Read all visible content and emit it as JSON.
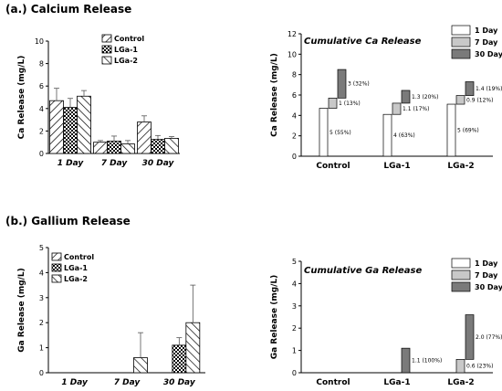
{
  "sections": [
    {
      "title": "(a.) Calcium Release"
    },
    {
      "title": "(b.) Gallium Release"
    }
  ],
  "colors": {
    "cum_1day": "#ffffff",
    "cum_7day": "#c8c8c8",
    "cum_30day": "#7a7a7a",
    "axis": "#000000"
  },
  "chart_data": [
    {
      "type": "bar",
      "title": "",
      "ylabel": "Ca Release (mg/L)",
      "ylim": [
        0,
        10
      ],
      "yticks": [
        "0",
        "2",
        "4",
        "6",
        "8",
        "10"
      ],
      "categories": [
        "1 Day",
        "7 Day",
        "30 Day"
      ],
      "legend_position": "top-right",
      "series": [
        {
          "name": "Control",
          "pattern": "diagonal-hatch",
          "values": [
            4.7,
            1.0,
            2.8
          ],
          "errors": [
            1.1,
            0.15,
            0.55
          ]
        },
        {
          "name": "LGa-1",
          "pattern": "crosshatch",
          "values": [
            4.1,
            1.1,
            1.25
          ],
          "errors": [
            0.8,
            0.45,
            0.35
          ]
        },
        {
          "name": "LGa-2",
          "pattern": "back-diagonal-hatch",
          "values": [
            5.1,
            0.85,
            1.35
          ],
          "errors": [
            0.5,
            0.3,
            0.15
          ]
        }
      ]
    },
    {
      "type": "bar",
      "subtitle": "Cumulative Ca Release",
      "ylabel": "Ca Release (mg/L)",
      "ylim": [
        0,
        12
      ],
      "yticks": [
        "0",
        "2",
        "4",
        "6",
        "8",
        "10",
        "12"
      ],
      "categories": [
        "Control",
        "LGa-1",
        "LGa-2"
      ],
      "legend_position": "top-right",
      "series": [
        {
          "name": "1 Day",
          "values": [
            4.7,
            4.1,
            5.1
          ],
          "labels": [
            "5 (55%)",
            "4 (63%)",
            "5 (69%)"
          ]
        },
        {
          "name": "7 Day",
          "values": [
            1.0,
            1.1,
            0.85
          ],
          "labels": [
            "1 (13%)",
            "1.1 (17%)",
            "0.9 (12%)"
          ]
        },
        {
          "name": "30 Day",
          "values": [
            2.8,
            1.25,
            1.35
          ],
          "labels": [
            "3 (32%)",
            "1.3 (20%)",
            "1.4 (19%)"
          ]
        }
      ]
    },
    {
      "type": "bar",
      "title": "",
      "ylabel": "Ga Release (mg/L)",
      "ylim": [
        0,
        5
      ],
      "yticks": [
        "0",
        "1",
        "2",
        "3",
        "4",
        "5"
      ],
      "categories": [
        "1 Day",
        "7 Day",
        "30 Day"
      ],
      "legend_position": "top-left",
      "series": [
        {
          "name": "Control",
          "pattern": "diagonal-hatch",
          "values": [
            0,
            0,
            0
          ],
          "errors": [
            0,
            0,
            0
          ]
        },
        {
          "name": "LGa-1",
          "pattern": "crosshatch",
          "values": [
            0,
            0,
            1.1
          ],
          "errors": [
            0,
            0,
            0.3
          ]
        },
        {
          "name": "LGa-2",
          "pattern": "back-diagonal-hatch",
          "values": [
            0,
            0.6,
            2.0
          ],
          "errors": [
            0,
            1.0,
            1.5
          ]
        }
      ]
    },
    {
      "type": "bar",
      "subtitle": "Cumulative Ga Release",
      "ylabel": "Ga Release (mg/L)",
      "ylim": [
        0,
        5
      ],
      "yticks": [
        "0",
        "1",
        "2",
        "3",
        "4",
        "5"
      ],
      "categories": [
        "Control",
        "LGa-1",
        "LGa-2"
      ],
      "legend_position": "top-right",
      "series": [
        {
          "name": "1 Day",
          "values": [
            0,
            0,
            0
          ],
          "labels": [
            "",
            "",
            ""
          ]
        },
        {
          "name": "7 Day",
          "values": [
            0,
            0,
            0.6
          ],
          "labels": [
            "",
            "",
            "0.6 (23%)"
          ]
        },
        {
          "name": "30 Day",
          "values": [
            0,
            1.1,
            2.0
          ],
          "labels": [
            "",
            "1.1 (100%)",
            "2.0 (77%)"
          ]
        }
      ]
    }
  ]
}
